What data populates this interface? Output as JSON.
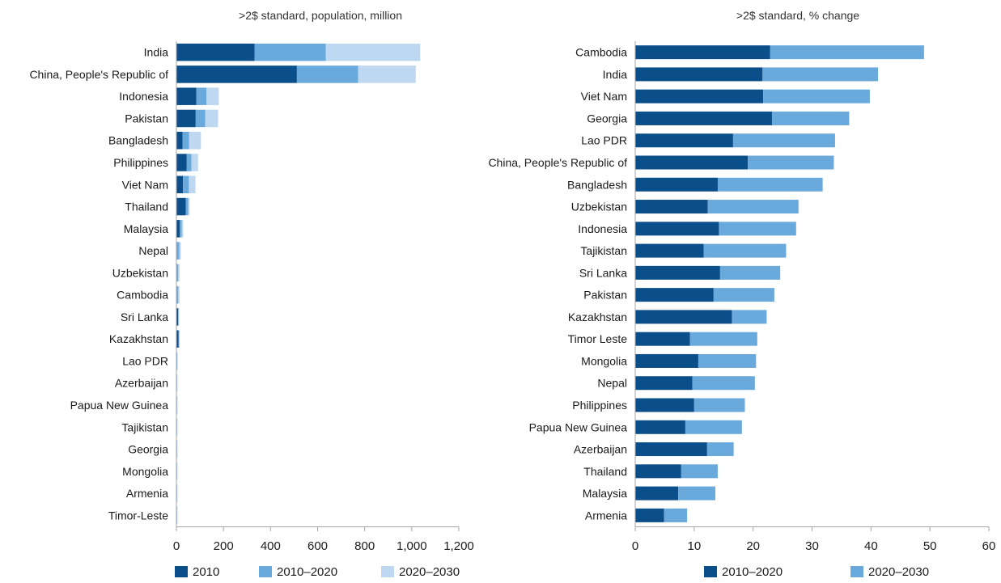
{
  "colors": {
    "dark": "#0b4f8a",
    "mid": "#6aa9dc",
    "light": "#bdd8f0",
    "axis": "#a6a6a6",
    "grid": "#d9d9d9",
    "text": "#1a1a1a"
  },
  "chart_data": [
    {
      "type": "bar",
      "orientation": "horizontal",
      "stacked": true,
      "title": ">2$ standard, population, million",
      "categories": [
        "India",
        "China, People's Republic of",
        "Indonesia",
        "Pakistan",
        "Bangladesh",
        "Philippines",
        "Viet Nam",
        "Thailand",
        "Malaysia",
        "Nepal",
        "Uzbekistan",
        "Cambodia",
        "Sri Lanka",
        "Kazakhstan",
        "Lao PDR",
        "Azerbaijan",
        "Papua New Guinea",
        "Tajikistan",
        "Georgia",
        "Mongolia",
        "Armenia",
        "Timor-Leste"
      ],
      "series": [
        {
          "name": "2010",
          "color": "#0b4f8a",
          "values": [
            332,
            512,
            85,
            82,
            26,
            44,
            28,
            40,
            14,
            2,
            2,
            1,
            7,
            9,
            1,
            1,
            1,
            1,
            1,
            1,
            1,
            1
          ]
        },
        {
          "name": "2010–2020",
          "color": "#6aa9dc",
          "values": [
            303,
            260,
            43,
            40,
            28,
            20,
            25,
            10,
            9,
            10,
            6,
            7,
            2,
            2,
            2,
            1,
            1,
            1,
            1,
            1,
            1,
            1
          ]
        },
        {
          "name": "2020–2030",
          "color": "#bdd8f0",
          "values": [
            401,
            245,
            52,
            55,
            50,
            28,
            28,
            6,
            6,
            7,
            5,
            5,
            1,
            1,
            2,
            2,
            2,
            1,
            1,
            1,
            1,
            1
          ]
        }
      ],
      "xlim": [
        0,
        1200
      ],
      "xticks": [
        0,
        200,
        400,
        600,
        800,
        1000,
        1200
      ],
      "xtick_labels": [
        "0",
        "200",
        "400",
        "600",
        "800",
        "1,000",
        "1,200"
      ],
      "grid": false,
      "legend_position": "bottom"
    },
    {
      "type": "bar",
      "orientation": "horizontal",
      "stacked": true,
      "title": ">2$ standard, % change",
      "categories": [
        "Cambodia",
        "India",
        "Viet Nam",
        "Georgia",
        "Lao PDR",
        "China, People's Republic of",
        "Bangladesh",
        "Uzbekistan",
        "Indonesia",
        "Tajikistan",
        "Sri Lanka",
        "Pakistan",
        "Kazakhstan",
        "Timor Leste",
        "Mongolia",
        "Nepal",
        "Philippines",
        "Papua New Guinea",
        "Azerbaijan",
        "Thailand",
        "Malaysia",
        "Armenia"
      ],
      "series": [
        {
          "name": "2010–2020",
          "color": "#0b4f8a",
          "values": [
            22.9,
            21.6,
            21.7,
            23.2,
            16.6,
            19.1,
            14.0,
            12.3,
            14.2,
            11.6,
            14.4,
            13.3,
            16.4,
            9.3,
            10.7,
            9.7,
            10.0,
            8.5,
            12.2,
            7.8,
            7.3,
            4.9
          ]
        },
        {
          "name": "2020–2030",
          "color": "#6aa9dc",
          "values": [
            26.1,
            19.6,
            18.1,
            13.1,
            17.3,
            14.6,
            17.8,
            15.4,
            13.1,
            14.0,
            10.2,
            10.3,
            5.9,
            11.4,
            9.8,
            10.6,
            8.6,
            9.6,
            4.5,
            6.2,
            6.3,
            3.9
          ]
        }
      ],
      "xlim": [
        0,
        60
      ],
      "xticks": [
        0,
        10,
        20,
        30,
        40,
        50,
        60
      ],
      "xtick_labels": [
        "0",
        "10",
        "20",
        "30",
        "40",
        "50",
        "60"
      ],
      "grid": false,
      "legend_position": "bottom"
    }
  ]
}
